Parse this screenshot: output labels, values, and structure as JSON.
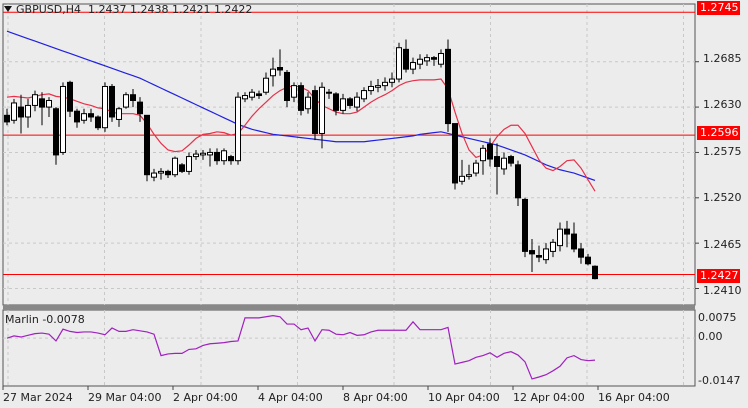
{
  "header": {
    "symbol": "GBPUSD,H4",
    "ohlc": "1.2437 1.2438 1.2421 1.2422"
  },
  "indicator": {
    "label": "Marlin -0.0078"
  },
  "price_axis": {
    "ticks": [
      "1.2685",
      "1.2630",
      "1.2575",
      "1.2520",
      "1.2465",
      "1.2410"
    ],
    "levels": [
      {
        "value": "1.2745",
        "color": "#ff0000"
      },
      {
        "value": "1.2596",
        "color": "#ff0000"
      },
      {
        "value": "1.2427",
        "color": "#ff0000"
      }
    ]
  },
  "indicator_axis": {
    "ticks": [
      "0.0075",
      "0.00",
      "-0.0147"
    ]
  },
  "time_axis": {
    "labels": [
      "27 Mar 2024",
      "29 Mar 04:00",
      "2 Apr 04:00",
      "4 Apr 04:00",
      "8 Apr 04:00",
      "10 Apr 04:00",
      "12 Apr 04:00",
      "16 Apr 04:00"
    ]
  },
  "colors": {
    "background": "#ececec",
    "grid": "#c8c8c8",
    "level_line": "#ff0000",
    "ma_fast": "#e8304a",
    "ma_slow": "#2020e0",
    "marlin": "#a020c0"
  },
  "chart_data": {
    "type": "candlestick",
    "title": "GBPUSD,H4",
    "timeframe": "H4",
    "last_ohlc": {
      "open": 1.2437,
      "high": 1.2438,
      "low": 1.2421,
      "close": 1.2422
    },
    "ylim": [
      1.239,
      1.2755
    ],
    "y_ticks": [
      1.241,
      1.2465,
      1.252,
      1.2575,
      1.263,
      1.2685
    ],
    "horizontal_levels": [
      1.2745,
      1.2596,
      1.2427
    ],
    "x_labels": [
      "27 Mar 2024",
      "29 Mar 04:00",
      "2 Apr 04:00",
      "4 Apr 04:00",
      "8 Apr 04:00",
      "10 Apr 04:00",
      "12 Apr 04:00",
      "16 Apr 04:00"
    ],
    "candles": [
      [
        1.262,
        1.2628,
        1.2608,
        1.2612
      ],
      [
        1.2614,
        1.264,
        1.261,
        1.2635
      ],
      [
        1.263,
        1.2645,
        1.2598,
        1.2618
      ],
      [
        1.2618,
        1.264,
        1.2605,
        1.2632
      ],
      [
        1.2632,
        1.265,
        1.2625,
        1.2645
      ],
      [
        1.264,
        1.2648,
        1.2608,
        1.263
      ],
      [
        1.263,
        1.2642,
        1.2618,
        1.2638
      ],
      [
        1.2628,
        1.263,
        1.256,
        1.2572
      ],
      [
        1.2575,
        1.266,
        1.2572,
        1.2655
      ],
      [
        1.266,
        1.2662,
        1.2618,
        1.2625
      ],
      [
        1.2625,
        1.2628,
        1.2605,
        1.2612
      ],
      [
        1.2614,
        1.2628,
        1.261,
        1.2622
      ],
      [
        1.2622,
        1.2628,
        1.2612,
        1.2618
      ],
      [
        1.2618,
        1.262,
        1.2602,
        1.2605
      ],
      [
        1.2605,
        1.266,
        1.26,
        1.2655
      ],
      [
        1.2655,
        1.2658,
        1.2612,
        1.2618
      ],
      [
        1.2615,
        1.263,
        1.2606,
        1.2628
      ],
      [
        1.263,
        1.2648,
        1.2628,
        1.2645
      ],
      [
        1.2645,
        1.2652,
        1.263,
        1.2638
      ],
      [
        1.2636,
        1.2642,
        1.2612,
        1.2622
      ],
      [
        1.262,
        1.262,
        1.254,
        1.2548
      ],
      [
        1.2545,
        1.2555,
        1.254,
        1.255
      ],
      [
        1.255,
        1.2556,
        1.2542,
        1.2552
      ],
      [
        1.2552,
        1.2554,
        1.2544,
        1.2548
      ],
      [
        1.2548,
        1.257,
        1.2545,
        1.2568
      ],
      [
        1.256,
        1.2562,
        1.255,
        1.2552
      ],
      [
        1.2552,
        1.2575,
        1.2548,
        1.257
      ],
      [
        1.257,
        1.2578,
        1.2566,
        1.2573
      ],
      [
        1.2572,
        1.2578,
        1.2566,
        1.2574
      ],
      [
        1.2572,
        1.258,
        1.2558,
        1.2575
      ],
      [
        1.2575,
        1.258,
        1.256,
        1.2565
      ],
      [
        1.2565,
        1.258,
        1.256,
        1.2577
      ],
      [
        1.257,
        1.2572,
        1.256,
        1.2565
      ],
      [
        1.2565,
        1.2648,
        1.256,
        1.2642
      ],
      [
        1.264,
        1.2648,
        1.2636,
        1.2644
      ],
      [
        1.2642,
        1.2652,
        1.2638,
        1.2648
      ],
      [
        1.2646,
        1.265,
        1.264,
        1.2644
      ],
      [
        1.2648,
        1.2672,
        1.2645,
        1.2665
      ],
      [
        1.2668,
        1.269,
        1.2655,
        1.2676
      ],
      [
        1.2678,
        1.27,
        1.2668,
        1.2675
      ],
      [
        1.2672,
        1.2675,
        1.263,
        1.2638
      ],
      [
        1.2642,
        1.266,
        1.2636,
        1.2656
      ],
      [
        1.2656,
        1.266,
        1.262,
        1.2626
      ],
      [
        1.2628,
        1.2648,
        1.2622,
        1.2642
      ],
      [
        1.265,
        1.2656,
        1.259,
        1.2598
      ],
      [
        1.2598,
        1.266,
        1.258,
        1.2654
      ],
      [
        1.2648,
        1.2652,
        1.264,
        1.2648
      ],
      [
        1.2646,
        1.2648,
        1.262,
        1.2626
      ],
      [
        1.2626,
        1.2646,
        1.2622,
        1.264
      ],
      [
        1.264,
        1.2642,
        1.2628,
        1.2632
      ],
      [
        1.263,
        1.2648,
        1.2625,
        1.2642
      ],
      [
        1.264,
        1.2654,
        1.2636,
        1.265
      ],
      [
        1.265,
        1.2662,
        1.2645,
        1.2655
      ],
      [
        1.2654,
        1.2664,
        1.2648,
        1.2656
      ],
      [
        1.2656,
        1.2666,
        1.265,
        1.266
      ],
      [
        1.266,
        1.2672,
        1.2654,
        1.2664
      ],
      [
        1.2664,
        1.2708,
        1.266,
        1.2702
      ],
      [
        1.27,
        1.2712,
        1.2672,
        1.2676
      ],
      [
        1.2676,
        1.269,
        1.267,
        1.2684
      ],
      [
        1.2682,
        1.2694,
        1.2676,
        1.2688
      ],
      [
        1.2686,
        1.2694,
        1.268,
        1.269
      ],
      [
        1.269,
        1.2692,
        1.268,
        1.2688
      ],
      [
        1.2682,
        1.27,
        1.2678,
        1.2695
      ],
      [
        1.27,
        1.2712,
        1.26,
        1.261
      ],
      [
        1.261,
        1.261,
        1.253,
        1.2538
      ],
      [
        1.254,
        1.2566,
        1.2536,
        1.2546
      ],
      [
        1.2546,
        1.256,
        1.2542,
        1.2548
      ],
      [
        1.255,
        1.2566,
        1.2546,
        1.2562
      ],
      [
        1.2565,
        1.2584,
        1.2548,
        1.258
      ],
      [
        1.2585,
        1.2592,
        1.2558,
        1.2567
      ],
      [
        1.257,
        1.2586,
        1.2524,
        1.2558
      ],
      [
        1.2555,
        1.2575,
        1.2548,
        1.2568
      ],
      [
        1.257,
        1.2572,
        1.2558,
        1.2562
      ],
      [
        1.256,
        1.2565,
        1.251,
        1.252
      ],
      [
        1.2518,
        1.252,
        1.2448,
        1.2455
      ],
      [
        1.2456,
        1.247,
        1.243,
        1.2452
      ],
      [
        1.245,
        1.2462,
        1.2442,
        1.2448
      ],
      [
        1.2445,
        1.2465,
        1.244,
        1.2458
      ],
      [
        1.2455,
        1.247,
        1.2448,
        1.2466
      ],
      [
        1.2462,
        1.249,
        1.2455,
        1.2482
      ],
      [
        1.2482,
        1.2492,
        1.246,
        1.2476
      ],
      [
        1.2476,
        1.249,
        1.2454,
        1.2458
      ],
      [
        1.2458,
        1.2465,
        1.244,
        1.2448
      ],
      [
        1.2448,
        1.2452,
        1.2438,
        1.244
      ],
      [
        1.2437,
        1.2438,
        1.2421,
        1.2422
      ]
    ],
    "ma_fast": [
      1.2642,
      1.2643,
      1.2642,
      1.2641,
      1.2643,
      1.2645,
      1.2646,
      1.2643,
      1.2642,
      1.264,
      1.2637,
      1.2634,
      1.2632,
      1.2629,
      1.2628,
      1.2624,
      1.2622,
      1.2622,
      1.2622,
      1.262,
      1.261,
      1.2597,
      1.2586,
      1.2578,
      1.2576,
      1.2577,
      1.2584,
      1.2592,
      1.2597,
      1.2598,
      1.26,
      1.2599,
      1.2596,
      1.2598,
      1.2608,
      1.2619,
      1.2628,
      1.2636,
      1.2644,
      1.265,
      1.2654,
      1.2656,
      1.2654,
      1.265,
      1.264,
      1.2632,
      1.2628,
      1.2624,
      1.2622,
      1.2622,
      1.2624,
      1.263,
      1.2636,
      1.2641,
      1.2645,
      1.265,
      1.2656,
      1.266,
      1.2662,
      1.2663,
      1.2663,
      1.2663,
      1.2664,
      1.2652,
      1.2624,
      1.2598,
      1.2578,
      1.2569,
      1.2572,
      1.2582,
      1.2594,
      1.2603,
      1.2608,
      1.2608,
      1.2598,
      1.2582,
      1.2566,
      1.2556,
      1.2553,
      1.2558,
      1.2565,
      1.2566,
      1.2556,
      1.2542,
      1.2528
    ],
    "ma_slow": [
      1.2722,
      1.2719,
      1.2716,
      1.2713,
      1.271,
      1.2707,
      1.2704,
      1.2701,
      1.2698,
      1.2695,
      1.2692,
      1.2689,
      1.2686,
      1.2683,
      1.268,
      1.2677,
      1.2674,
      1.2671,
      1.2668,
      1.2665,
      1.2661,
      1.2657,
      1.2653,
      1.2649,
      1.2645,
      1.2641,
      1.2637,
      1.2633,
      1.2629,
      1.2625,
      1.2621,
      1.2617,
      1.2613,
      1.2609,
      1.2606,
      1.2603,
      1.2601,
      1.2599,
      1.2597,
      1.2596,
      1.2595,
      1.2594,
      1.2593,
      1.2592,
      1.2591,
      1.259,
      1.2589,
      1.2588,
      1.2588,
      1.2588,
      1.2588,
      1.2588,
      1.2589,
      1.259,
      1.2591,
      1.2592,
      1.2593,
      1.2594,
      1.2595,
      1.2597,
      1.2598,
      1.2599,
      1.26,
      1.2598,
      1.2596,
      1.2594,
      1.2592,
      1.259,
      1.2588,
      1.2586,
      1.2584,
      1.2581,
      1.2578,
      1.2575,
      1.2572,
      1.2568,
      1.2564,
      1.256,
      1.2557,
      1.2554,
      1.2552,
      1.255,
      1.2547,
      1.2544,
      1.2541
    ],
    "indicator": {
      "name": "Marlin",
      "last_value": -0.0078,
      "ylim": [
        -0.017,
        0.01
      ],
      "y_ticks": [
        0.0075,
        0.0,
        -0.0147
      ],
      "values": [
        0.0,
        0.0008,
        0.0004,
        0.001,
        0.0016,
        0.0018,
        0.0014,
        -0.001,
        0.0032,
        0.0024,
        0.002,
        0.0022,
        0.0022,
        0.0018,
        0.0012,
        0.0036,
        0.0024,
        0.0024,
        0.003,
        0.0026,
        0.0022,
        0.0014,
        -0.0062,
        -0.0056,
        -0.0054,
        -0.0054,
        -0.004,
        -0.0038,
        -0.0026,
        -0.002,
        -0.0018,
        -0.0016,
        -0.0012,
        -0.001,
        0.0072,
        0.0072,
        0.0072,
        0.0076,
        0.008,
        0.0076,
        0.005,
        0.005,
        0.003,
        0.0036,
        -0.001,
        0.003,
        0.0028,
        0.0014,
        0.0012,
        0.002,
        0.001,
        0.0012,
        0.0022,
        0.0028,
        0.0028,
        0.0028,
        0.0028,
        0.0028,
        0.0058,
        0.003,
        0.003,
        0.003,
        0.003,
        0.0038,
        -0.0092,
        -0.0086,
        -0.008,
        -0.0068,
        -0.0062,
        -0.0052,
        -0.0068,
        -0.0054,
        -0.0048,
        -0.006,
        -0.0084,
        -0.0145,
        -0.0138,
        -0.013,
        -0.0116,
        -0.01,
        -0.007,
        -0.0062,
        -0.0076,
        -0.008,
        -0.0078
      ]
    }
  }
}
